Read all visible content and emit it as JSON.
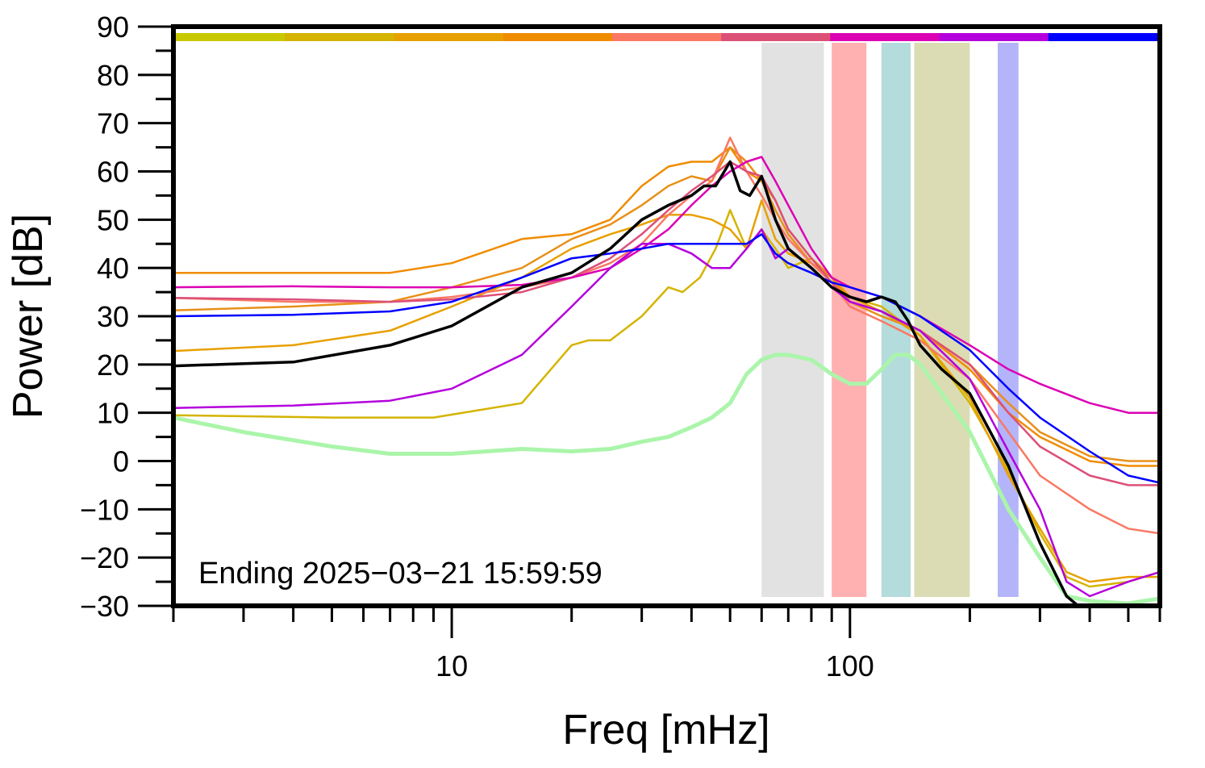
{
  "chart_data": {
    "type": "line",
    "title": "",
    "xlabel": "Freq [mHz]",
    "ylabel": "Power [dB]",
    "xscale": "log",
    "xlim": [
      2,
      600
    ],
    "ylim": [
      -30,
      90
    ],
    "y_ticks": [
      90,
      80,
      70,
      60,
      50,
      40,
      30,
      20,
      10,
      0,
      -10,
      -20,
      -30
    ],
    "y_tick_labels": [
      "90",
      "80",
      "70",
      "60",
      "50",
      "40",
      "30",
      "20",
      "10",
      "0",
      "−10",
      "−20",
      "−30"
    ],
    "x_major_ticks": [
      10,
      100
    ],
    "x_tick_labels": [
      "10",
      "100"
    ],
    "x_minor_ticks": [
      2,
      3,
      4,
      5,
      6,
      7,
      8,
      9,
      20,
      30,
      40,
      50,
      60,
      70,
      80,
      90,
      200,
      300,
      400,
      500,
      600
    ],
    "annotation": "Ending 2025−03−21 15:59:59",
    "grid": false,
    "legend": "none",
    "color_bar": [
      "#c8c800",
      "#d4b400",
      "#e8a000",
      "#f08c00",
      "#fa7864",
      "#dc5078",
      "#dc00b4",
      "#b400dc",
      "#0000ff"
    ],
    "bands": [
      {
        "x0": 60,
        "x1": 86,
        "color": "#e2e2e2"
      },
      {
        "x0": 90,
        "x1": 110,
        "color": "#ffb0b0"
      },
      {
        "x0": 120,
        "x1": 142,
        "color": "#b4dcdc"
      },
      {
        "x0": 145,
        "x1": 200,
        "color": "#dcdcb4"
      },
      {
        "x0": 235,
        "x1": 265,
        "color": "#b4b4fa"
      }
    ],
    "series": [
      {
        "color": "#d4b400",
        "width": 2.5,
        "x": [
          2,
          5,
          9,
          15,
          20,
          22,
          25,
          30,
          35,
          38,
          42,
          46,
          50,
          55,
          60,
          65,
          70,
          80,
          90,
          100,
          120,
          150,
          200,
          250,
          300,
          350,
          400,
          500,
          600
        ],
        "y": [
          9.5,
          9,
          9,
          12,
          24,
          25,
          25,
          30,
          36,
          35,
          38,
          44,
          52,
          44,
          48,
          44,
          40,
          42,
          38,
          34,
          32,
          26,
          12,
          -2,
          -15,
          -24,
          -26,
          -25,
          -23
        ]
      },
      {
        "color": "#e8a000",
        "width": 2.5,
        "x": [
          2,
          4,
          7,
          10,
          15,
          20,
          25,
          30,
          35,
          40,
          45,
          50,
          55,
          60,
          65,
          70,
          80,
          90,
          100,
          120,
          150,
          200,
          250,
          300,
          350,
          400,
          500,
          600
        ],
        "y": [
          22.8,
          24,
          27,
          32,
          38,
          44,
          47,
          49,
          51,
          51,
          50,
          48,
          44,
          54,
          46,
          43,
          41,
          38,
          34,
          31,
          26,
          13,
          -3,
          -14,
          -23,
          -25,
          -24,
          -24
        ]
      },
      {
        "color": "#f08c00",
        "width": 2.5,
        "x": [
          2,
          4,
          7,
          10,
          15,
          20,
          25,
          30,
          35,
          40,
          45,
          50,
          55,
          60,
          65,
          70,
          80,
          90,
          100,
          120,
          150,
          200,
          250,
          300,
          400,
          500,
          600
        ],
        "y": [
          39,
          39,
          39,
          41,
          46,
          47,
          50,
          57,
          61,
          62,
          62,
          65,
          60,
          58,
          54,
          48,
          42,
          38,
          33,
          31,
          27,
          19,
          10,
          5,
          0,
          -1,
          -1
        ]
      },
      {
        "color": "#e89018",
        "width": 2.5,
        "x": [
          2,
          4,
          7,
          10,
          15,
          20,
          25,
          30,
          35,
          40,
          45,
          50,
          55,
          60,
          65,
          70,
          80,
          90,
          100,
          120,
          150,
          200,
          250,
          300,
          400,
          500,
          600
        ],
        "y": [
          31.2,
          32,
          33,
          36,
          40,
          46,
          49,
          53,
          57,
          59,
          58,
          65,
          62,
          58,
          52,
          47,
          41,
          37,
          33,
          30,
          27,
          20,
          12,
          6,
          1,
          0,
          0
        ]
      },
      {
        "color": "#fa7864",
        "width": 2.5,
        "x": [
          2,
          4,
          7,
          10,
          15,
          20,
          25,
          30,
          35,
          40,
          45,
          50,
          55,
          60,
          65,
          70,
          80,
          90,
          100,
          120,
          150,
          200,
          250,
          300,
          400,
          500,
          600
        ],
        "y": [
          33.8,
          33,
          33,
          34,
          36,
          38,
          41,
          45,
          51,
          55,
          58,
          67,
          60,
          55,
          50,
          46,
          41,
          37,
          32,
          29,
          25,
          17,
          6,
          -3,
          -10,
          -14,
          -15
        ]
      },
      {
        "color": "#dc5078",
        "width": 2.5,
        "x": [
          2,
          4,
          7,
          10,
          15,
          20,
          25,
          30,
          35,
          40,
          45,
          50,
          55,
          60,
          65,
          70,
          80,
          90,
          100,
          120,
          150,
          200,
          250,
          300,
          400,
          500,
          600
        ],
        "y": [
          33.8,
          33.5,
          33,
          33.5,
          35,
          38,
          42,
          47,
          52,
          56,
          59,
          62,
          60,
          59,
          54,
          48,
          42,
          37,
          33,
          31,
          27,
          20,
          10,
          3,
          -3,
          -5,
          -5
        ]
      },
      {
        "color": "#dc00b4",
        "width": 2.5,
        "x": [
          2,
          4,
          7,
          10,
          15,
          20,
          25,
          30,
          35,
          40,
          45,
          50,
          55,
          60,
          65,
          70,
          80,
          90,
          100,
          120,
          150,
          200,
          250,
          300,
          400,
          500,
          600
        ],
        "y": [
          36,
          36.2,
          36,
          36,
          36.5,
          38,
          40,
          44,
          48,
          53,
          57,
          60,
          62,
          63,
          58,
          53,
          44,
          38,
          36,
          34,
          30,
          24,
          19,
          16,
          12,
          10,
          10
        ]
      },
      {
        "color": "#b400dc",
        "width": 2.5,
        "x": [
          2,
          4,
          7,
          10,
          15,
          20,
          25,
          30,
          35,
          40,
          45,
          50,
          55,
          60,
          65,
          70,
          80,
          90,
          100,
          120,
          150,
          200,
          250,
          300,
          350,
          400,
          500,
          600
        ],
        "y": [
          11,
          11.5,
          12.5,
          15,
          22,
          32,
          40,
          45,
          45,
          43,
          40,
          40,
          44,
          48,
          42,
          44,
          40,
          36,
          33,
          31,
          27,
          17,
          2,
          -10,
          -25,
          -28,
          -25,
          -23
        ]
      },
      {
        "color": "#0000ff",
        "width": 2.5,
        "x": [
          2,
          4,
          7,
          10,
          15,
          20,
          25,
          30,
          35,
          40,
          45,
          50,
          55,
          60,
          65,
          70,
          80,
          90,
          100,
          120,
          150,
          200,
          250,
          300,
          400,
          500,
          600
        ],
        "y": [
          30,
          30.3,
          31,
          33,
          38,
          42,
          43,
          44,
          45,
          45,
          45,
          45,
          45,
          47,
          43,
          41,
          39,
          37,
          36,
          34,
          30,
          23,
          15,
          9,
          2,
          -3,
          -4.5
        ]
      },
      {
        "color": "#aaf5aa",
        "width": 5,
        "x": [
          2,
          3,
          5,
          7,
          10,
          15,
          20,
          25,
          30,
          35,
          40,
          45,
          50,
          55,
          60,
          65,
          70,
          80,
          90,
          100,
          110,
          120,
          130,
          140,
          150,
          170,
          200,
          250,
          300,
          350,
          400,
          500,
          600
        ],
        "y": [
          9,
          6,
          3,
          1.5,
          1.5,
          2.5,
          2,
          2.5,
          4,
          5,
          7,
          9,
          12,
          18,
          21,
          22,
          22,
          21,
          18,
          16,
          16,
          19,
          22,
          22,
          20,
          14,
          6,
          -10,
          -20,
          -28,
          -29,
          -29.5,
          -28.5
        ]
      },
      {
        "color": "#000000",
        "width": 3.5,
        "x": [
          2,
          4,
          7,
          10,
          15,
          20,
          25,
          30,
          35,
          40,
          43,
          46,
          50,
          53,
          56,
          60,
          65,
          70,
          80,
          90,
          100,
          110,
          120,
          130,
          140,
          150,
          170,
          200,
          250,
          300,
          350,
          400
        ],
        "y": [
          19.7,
          20.5,
          24,
          28,
          36,
          39,
          44,
          50,
          53,
          55,
          57,
          57,
          62,
          56,
          55,
          59,
          50,
          44,
          40,
          36,
          34,
          33,
          34,
          33,
          29,
          24,
          19,
          14,
          -1,
          -17,
          -28,
          -32
        ]
      }
    ]
  }
}
